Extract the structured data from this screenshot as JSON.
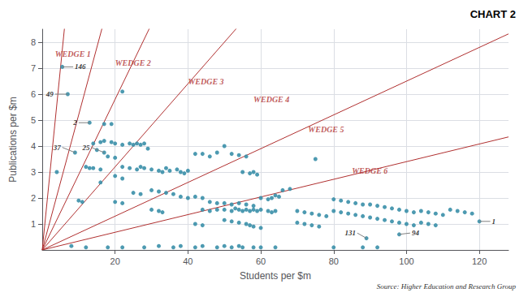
{
  "chart_data": {
    "type": "scatter",
    "title": "CHART 2",
    "source": "Source: Higher Education and Research Group",
    "x_label": "Students per $m",
    "y_label": "Publications per $m",
    "xlim": [
      0,
      128
    ],
    "ylim": [
      0,
      8.5
    ],
    "xticks": [
      20,
      40,
      60,
      80,
      100,
      120
    ],
    "yticks": [
      1,
      2,
      3,
      4,
      5,
      6,
      7,
      8
    ],
    "grid": true,
    "series": [
      {
        "type": "scatter",
        "color": "#3a8fa8",
        "points": [
          [
            5.5,
            7.05
          ],
          [
            7.0,
            6.0
          ],
          [
            13.0,
            4.9
          ],
          [
            9.0,
            3.75
          ],
          [
            17.0,
            3.75
          ],
          [
            89.0,
            0.45
          ],
          [
            98.0,
            0.6
          ],
          [
            120.0,
            1.1
          ],
          [
            22,
            6.1
          ],
          [
            17,
            4.85
          ],
          [
            19,
            4.85
          ],
          [
            14,
            4.1
          ],
          [
            16,
            4.15
          ],
          [
            17,
            4.2
          ],
          [
            19,
            4.15
          ],
          [
            20,
            4.1
          ],
          [
            22,
            4.05
          ],
          [
            24,
            4.1
          ],
          [
            25,
            4.05
          ],
          [
            26,
            4.1
          ],
          [
            27,
            4.05
          ],
          [
            28,
            4.1
          ],
          [
            29,
            3.9
          ],
          [
            15,
            3.85
          ],
          [
            18,
            3.6
          ],
          [
            20,
            3.55
          ],
          [
            12,
            3.2
          ],
          [
            14,
            3.15
          ],
          [
            16,
            3.1
          ],
          [
            22,
            3.2
          ],
          [
            24,
            3.15
          ],
          [
            26,
            3.1
          ],
          [
            27,
            3.2
          ],
          [
            28,
            3.15
          ],
          [
            30,
            3.1
          ],
          [
            32,
            3.05
          ],
          [
            33,
            3.0
          ],
          [
            34,
            3.15
          ],
          [
            35,
            3.05
          ],
          [
            37,
            3.1
          ],
          [
            38,
            3.0
          ],
          [
            39,
            2.95
          ],
          [
            40,
            3.05
          ],
          [
            42,
            3.7
          ],
          [
            44,
            3.7
          ],
          [
            46,
            3.6
          ],
          [
            48,
            3.75
          ],
          [
            50,
            4.0
          ],
          [
            52,
            3.7
          ],
          [
            54,
            3.65
          ],
          [
            56,
            3.6
          ],
          [
            55,
            3.0
          ],
          [
            57,
            2.95
          ],
          [
            58,
            3.0
          ],
          [
            59,
            2.9
          ],
          [
            60,
            2.0
          ],
          [
            62,
            1.95
          ],
          [
            63,
            2.0
          ],
          [
            64,
            2.1
          ],
          [
            65,
            2.05
          ],
          [
            66,
            2.3
          ],
          [
            68,
            2.35
          ],
          [
            30,
            2.3
          ],
          [
            32,
            2.25
          ],
          [
            34,
            2.2
          ],
          [
            36,
            2.15
          ],
          [
            38,
            2.05
          ],
          [
            40,
            2.0
          ],
          [
            42,
            2.05
          ],
          [
            44,
            2.0
          ],
          [
            46,
            1.85
          ],
          [
            48,
            1.8
          ],
          [
            50,
            1.8
          ],
          [
            52,
            1.75
          ],
          [
            54,
            1.8
          ],
          [
            56,
            1.75
          ],
          [
            58,
            1.7
          ],
          [
            20,
            1.85
          ],
          [
            22,
            1.8
          ],
          [
            25,
            2.2
          ],
          [
            27,
            2.15
          ],
          [
            30,
            1.55
          ],
          [
            32,
            1.5
          ],
          [
            33,
            1.45
          ],
          [
            44,
            1.55
          ],
          [
            46,
            1.5
          ],
          [
            48,
            1.55
          ],
          [
            50,
            1.55
          ],
          [
            52,
            1.5
          ],
          [
            53,
            1.6
          ],
          [
            54,
            1.55
          ],
          [
            55,
            1.5
          ],
          [
            56,
            1.55
          ],
          [
            57,
            1.5
          ],
          [
            58,
            1.55
          ],
          [
            59,
            1.5
          ],
          [
            60,
            1.55
          ],
          [
            62,
            1.5
          ],
          [
            63,
            1.45
          ],
          [
            64,
            1.5
          ],
          [
            50,
            1.15
          ],
          [
            52,
            1.1
          ],
          [
            54,
            1.05
          ],
          [
            56,
            1.0
          ],
          [
            57,
            0.95
          ],
          [
            58,
            0.9
          ],
          [
            60,
            0.85
          ],
          [
            42,
            1.0
          ],
          [
            44,
            0.95
          ],
          [
            80,
            1.95
          ],
          [
            82,
            1.9
          ],
          [
            84,
            1.85
          ],
          [
            86,
            1.8
          ],
          [
            88,
            1.75
          ],
          [
            90,
            1.75
          ],
          [
            92,
            1.7
          ],
          [
            94,
            1.65
          ],
          [
            96,
            1.6
          ],
          [
            98,
            1.55
          ],
          [
            100,
            1.5
          ],
          [
            102,
            1.45
          ],
          [
            80,
            1.5
          ],
          [
            82,
            1.45
          ],
          [
            84,
            1.4
          ],
          [
            86,
            1.35
          ],
          [
            88,
            1.3
          ],
          [
            90,
            1.25
          ],
          [
            92,
            1.2
          ],
          [
            94,
            1.15
          ],
          [
            96,
            1.1
          ],
          [
            98,
            1.05
          ],
          [
            100,
            1.0
          ],
          [
            102,
            0.95
          ],
          [
            104,
            1.5
          ],
          [
            106,
            1.45
          ],
          [
            108,
            1.4
          ],
          [
            110,
            1.35
          ],
          [
            112,
            1.55
          ],
          [
            114,
            1.5
          ],
          [
            116,
            1.45
          ],
          [
            118,
            1.4
          ],
          [
            104,
            1.05
          ],
          [
            106,
            1.0
          ],
          [
            108,
            0.95
          ],
          [
            70,
            1.5
          ],
          [
            72,
            1.45
          ],
          [
            74,
            1.4
          ],
          [
            76,
            1.35
          ],
          [
            78,
            1.3
          ],
          [
            70,
            1.05
          ],
          [
            72,
            1.0
          ],
          [
            74,
            0.95
          ],
          [
            76,
            0.9
          ],
          [
            8,
            0.15
          ],
          [
            12,
            0.1
          ],
          [
            18,
            0.1
          ],
          [
            22,
            0.1
          ],
          [
            28,
            0.1
          ],
          [
            32,
            0.15
          ],
          [
            36,
            0.1
          ],
          [
            38,
            0.15
          ],
          [
            42,
            0.1
          ],
          [
            44,
            0.15
          ],
          [
            48,
            0.1
          ],
          [
            50,
            0.15
          ],
          [
            52,
            0.1
          ],
          [
            54,
            0.15
          ],
          [
            55,
            0.1
          ],
          [
            58,
            0.1
          ],
          [
            60,
            0.1
          ],
          [
            64,
            0.1
          ],
          [
            80,
            0.1
          ],
          [
            88,
            0.1
          ],
          [
            92,
            0.1
          ],
          [
            10,
            1.9
          ],
          [
            11,
            1.85
          ],
          [
            16,
            2.6
          ],
          [
            13,
            3.15
          ],
          [
            20,
            2.85
          ],
          [
            22,
            2.75
          ],
          [
            4,
            3.0
          ],
          [
            75,
            3.5
          ]
        ]
      }
    ],
    "wedge_lines": {
      "color": "#b03030",
      "lines": [
        {
          "slope": 1.4,
          "label": "WEDGE 1",
          "label_x": 3.5,
          "label_y": 7.55
        },
        {
          "slope": 0.52,
          "label": "WEDGE 2",
          "label_x": 20,
          "label_y": 7.2
        },
        {
          "slope": 0.29,
          "label": "WEDGE 3",
          "label_x": 40,
          "label_y": 6.5
        },
        {
          "slope": 0.16,
          "label": "WEDGE 4",
          "label_x": 58,
          "label_y": 5.8
        },
        {
          "slope": 0.065,
          "label": "WEDGE 5",
          "label_x": 73,
          "label_y": 4.65
        },
        {
          "slope": 0.034,
          "label": "WEDGE 6",
          "label_x": 85,
          "label_y": 3.05
        }
      ]
    },
    "annotations": [
      {
        "x": 5.5,
        "y": 7.05,
        "label": "146",
        "label_x": 8.5,
        "label_y": 7.05
      },
      {
        "x": 7,
        "y": 6.0,
        "label": "49",
        "label_x": 3.5,
        "label_y": 6.0
      },
      {
        "x": 13,
        "y": 4.9,
        "label": "2",
        "label_x": 10,
        "label_y": 4.9
      },
      {
        "x": 9,
        "y": 3.75,
        "label": "37",
        "label_x": 5.5,
        "label_y": 3.95
      },
      {
        "x": 17,
        "y": 3.75,
        "label": "25",
        "label_x": 13.5,
        "label_y": 3.95
      },
      {
        "x": 89,
        "y": 0.45,
        "label": "131",
        "label_x": 86.5,
        "label_y": 0.65
      },
      {
        "x": 98,
        "y": 0.6,
        "label": "94",
        "label_x": 101,
        "label_y": 0.65
      },
      {
        "x": 120,
        "y": 1.1,
        "label": "1",
        "label_x": 123,
        "label_y": 1.1
      }
    ]
  }
}
